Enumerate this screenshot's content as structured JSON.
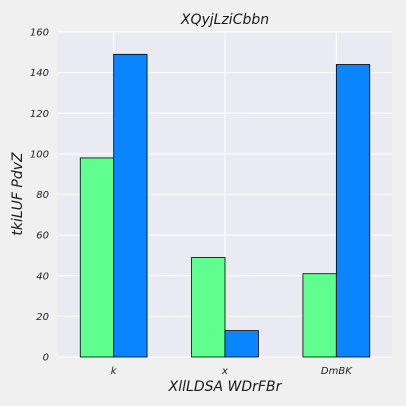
{
  "chart_data": {
    "type": "bar",
    "title": "XQyjLziCbbn",
    "xlabel": "XllLDSA WDrFBr",
    "ylabel": "tkiLUF PdvZ",
    "categories": [
      "k",
      "x",
      "DmBK"
    ],
    "series": [
      {
        "values": [
          98,
          49,
          41
        ],
        "color": "#5eff8f"
      },
      {
        "values": [
          149,
          13,
          144
        ],
        "color": "#0a84ff"
      }
    ],
    "ylim": [
      0,
      160
    ],
    "yticks": [
      0,
      20,
      40,
      60,
      80,
      100,
      120,
      140,
      160
    ],
    "grid": true,
    "background": "#eaeaf2",
    "page_background": "#f0f0f0",
    "grid_color": "#ffffff",
    "edge_color": "#000000"
  }
}
